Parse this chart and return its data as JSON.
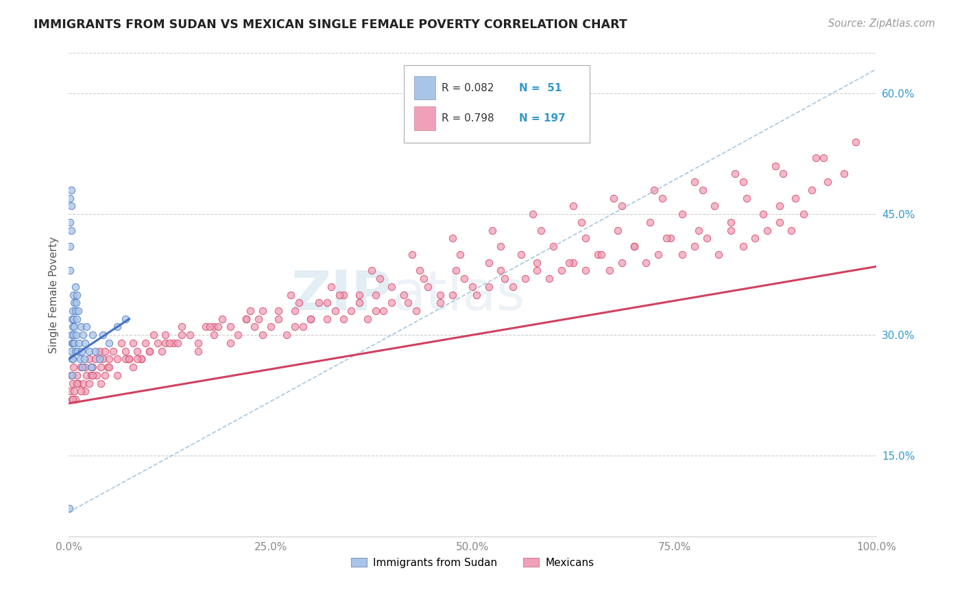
{
  "title": "IMMIGRANTS FROM SUDAN VS MEXICAN SINGLE FEMALE POVERTY CORRELATION CHART",
  "source": "Source: ZipAtlas.com",
  "ylabel": "Single Female Poverty",
  "xlim": [
    0,
    1.0
  ],
  "ylim": [
    0.05,
    0.65
  ],
  "xticks": [
    0.0,
    0.25,
    0.5,
    0.75,
    1.0
  ],
  "xtick_labels": [
    "0.0%",
    "25.0%",
    "50.0%",
    "75.0%",
    "100.0%"
  ],
  "ytick_vals_right": [
    0.15,
    0.3,
    0.45,
    0.6
  ],
  "ytick_labels_right": [
    "15.0%",
    "30.0%",
    "45.0%",
    "60.0%"
  ],
  "sudan_color": "#a8c4e8",
  "mexican_color": "#f0a0b8",
  "sudan_line_color": "#4472c4",
  "mexican_line_color": "#d04060",
  "ref_line_color": "#90b8d8",
  "legend_R_sudan": "0.082",
  "legend_N_sudan": "51",
  "legend_R_mexican": "0.798",
  "legend_N_mexican": "197",
  "legend_label_sudan": "Immigrants from Sudan",
  "legend_label_mexican": "Mexicans",
  "watermark_zip": "ZIP",
  "watermark_atlas": "atlas",
  "sudan_scatter_x": [
    0.001,
    0.002,
    0.002,
    0.002,
    0.002,
    0.003,
    0.003,
    0.003,
    0.003,
    0.003,
    0.004,
    0.004,
    0.004,
    0.004,
    0.005,
    0.005,
    0.005,
    0.005,
    0.006,
    0.006,
    0.006,
    0.007,
    0.007,
    0.007,
    0.008,
    0.008,
    0.008,
    0.009,
    0.009,
    0.01,
    0.01,
    0.011,
    0.012,
    0.013,
    0.014,
    0.015,
    0.016,
    0.017,
    0.018,
    0.019,
    0.02,
    0.022,
    0.025,
    0.028,
    0.03,
    0.033,
    0.038,
    0.042,
    0.05,
    0.06,
    0.07
  ],
  "sudan_scatter_y": [
    0.085,
    0.47,
    0.44,
    0.41,
    0.38,
    0.48,
    0.46,
    0.43,
    0.3,
    0.28,
    0.32,
    0.29,
    0.27,
    0.25,
    0.33,
    0.31,
    0.29,
    0.27,
    0.35,
    0.32,
    0.3,
    0.34,
    0.31,
    0.29,
    0.36,
    0.33,
    0.28,
    0.34,
    0.3,
    0.35,
    0.32,
    0.28,
    0.33,
    0.29,
    0.27,
    0.31,
    0.28,
    0.26,
    0.3,
    0.27,
    0.29,
    0.31,
    0.28,
    0.26,
    0.3,
    0.28,
    0.27,
    0.3,
    0.29,
    0.31,
    0.32
  ],
  "mexican_scatter_x": [
    0.002,
    0.003,
    0.004,
    0.005,
    0.006,
    0.007,
    0.008,
    0.01,
    0.012,
    0.015,
    0.018,
    0.02,
    0.022,
    0.025,
    0.028,
    0.03,
    0.033,
    0.035,
    0.038,
    0.04,
    0.042,
    0.045,
    0.048,
    0.05,
    0.055,
    0.06,
    0.065,
    0.07,
    0.075,
    0.08,
    0.085,
    0.09,
    0.095,
    0.1,
    0.105,
    0.11,
    0.115,
    0.12,
    0.13,
    0.14,
    0.15,
    0.16,
    0.17,
    0.18,
    0.19,
    0.2,
    0.21,
    0.22,
    0.23,
    0.24,
    0.25,
    0.26,
    0.27,
    0.28,
    0.29,
    0.3,
    0.31,
    0.32,
    0.33,
    0.34,
    0.35,
    0.36,
    0.37,
    0.38,
    0.39,
    0.4,
    0.415,
    0.43,
    0.445,
    0.46,
    0.475,
    0.49,
    0.505,
    0.52,
    0.535,
    0.55,
    0.565,
    0.58,
    0.595,
    0.61,
    0.625,
    0.64,
    0.655,
    0.67,
    0.685,
    0.7,
    0.715,
    0.73,
    0.745,
    0.76,
    0.775,
    0.79,
    0.805,
    0.82,
    0.835,
    0.85,
    0.865,
    0.88,
    0.895,
    0.91,
    0.005,
    0.01,
    0.02,
    0.03,
    0.04,
    0.05,
    0.06,
    0.07,
    0.08,
    0.09,
    0.1,
    0.12,
    0.14,
    0.16,
    0.18,
    0.2,
    0.22,
    0.24,
    0.26,
    0.28,
    0.3,
    0.32,
    0.34,
    0.36,
    0.38,
    0.4,
    0.42,
    0.44,
    0.46,
    0.48,
    0.5,
    0.52,
    0.54,
    0.56,
    0.58,
    0.6,
    0.62,
    0.64,
    0.66,
    0.68,
    0.7,
    0.72,
    0.74,
    0.76,
    0.78,
    0.8,
    0.82,
    0.84,
    0.86,
    0.88,
    0.9,
    0.92,
    0.94,
    0.96,
    0.025,
    0.075,
    0.125,
    0.175,
    0.225,
    0.275,
    0.325,
    0.375,
    0.425,
    0.475,
    0.525,
    0.575,
    0.625,
    0.675,
    0.725,
    0.775,
    0.825,
    0.875,
    0.925,
    0.975,
    0.015,
    0.045,
    0.085,
    0.135,
    0.185,
    0.235,
    0.285,
    0.335,
    0.385,
    0.435,
    0.485,
    0.535,
    0.585,
    0.635,
    0.685,
    0.735,
    0.785,
    0.835,
    0.885,
    0.935
  ],
  "mexican_scatter_y": [
    0.23,
    0.25,
    0.22,
    0.24,
    0.26,
    0.23,
    0.22,
    0.25,
    0.24,
    0.26,
    0.24,
    0.26,
    0.25,
    0.27,
    0.25,
    0.26,
    0.27,
    0.25,
    0.28,
    0.26,
    0.27,
    0.28,
    0.26,
    0.27,
    0.28,
    0.27,
    0.29,
    0.28,
    0.27,
    0.29,
    0.28,
    0.27,
    0.29,
    0.28,
    0.3,
    0.29,
    0.28,
    0.3,
    0.29,
    0.31,
    0.3,
    0.29,
    0.31,
    0.3,
    0.32,
    0.31,
    0.3,
    0.32,
    0.31,
    0.33,
    0.31,
    0.32,
    0.3,
    0.33,
    0.31,
    0.32,
    0.34,
    0.32,
    0.33,
    0.35,
    0.33,
    0.34,
    0.32,
    0.35,
    0.33,
    0.34,
    0.35,
    0.33,
    0.36,
    0.34,
    0.35,
    0.37,
    0.35,
    0.36,
    0.38,
    0.36,
    0.37,
    0.39,
    0.37,
    0.38,
    0.39,
    0.38,
    0.4,
    0.38,
    0.39,
    0.41,
    0.39,
    0.4,
    0.42,
    0.4,
    0.41,
    0.42,
    0.4,
    0.43,
    0.41,
    0.42,
    0.43,
    0.44,
    0.43,
    0.45,
    0.22,
    0.24,
    0.23,
    0.25,
    0.24,
    0.26,
    0.25,
    0.27,
    0.26,
    0.27,
    0.28,
    0.29,
    0.3,
    0.28,
    0.31,
    0.29,
    0.32,
    0.3,
    0.33,
    0.31,
    0.32,
    0.34,
    0.32,
    0.35,
    0.33,
    0.36,
    0.34,
    0.37,
    0.35,
    0.38,
    0.36,
    0.39,
    0.37,
    0.4,
    0.38,
    0.41,
    0.39,
    0.42,
    0.4,
    0.43,
    0.41,
    0.44,
    0.42,
    0.45,
    0.43,
    0.46,
    0.44,
    0.47,
    0.45,
    0.46,
    0.47,
    0.48,
    0.49,
    0.5,
    0.24,
    0.27,
    0.29,
    0.31,
    0.33,
    0.35,
    0.36,
    0.38,
    0.4,
    0.42,
    0.43,
    0.45,
    0.46,
    0.47,
    0.48,
    0.49,
    0.5,
    0.51,
    0.52,
    0.54,
    0.23,
    0.25,
    0.27,
    0.29,
    0.31,
    0.32,
    0.34,
    0.35,
    0.37,
    0.38,
    0.4,
    0.41,
    0.43,
    0.44,
    0.46,
    0.47,
    0.48,
    0.49,
    0.5,
    0.52
  ],
  "ref_line_x": [
    0.0,
    1.0
  ],
  "ref_line_y": [
    0.08,
    0.63
  ],
  "sudan_trendline_x": [
    0.0,
    0.075
  ],
  "sudan_trendline_y": [
    0.27,
    0.32
  ],
  "mexican_trendline_x": [
    0.0,
    1.0
  ],
  "mexican_trendline_y": [
    0.215,
    0.385
  ]
}
